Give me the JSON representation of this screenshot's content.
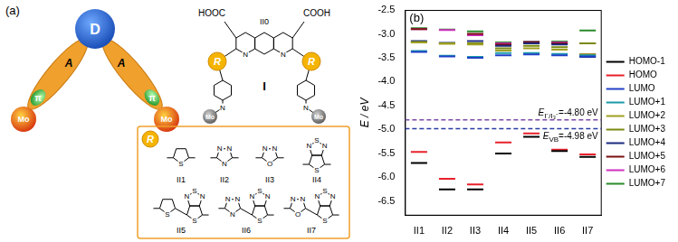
{
  "panel_a": {
    "label": "(a)",
    "scheme": {
      "donor": "D",
      "acceptor": "A",
      "bridge": "π",
      "anchor": "Mo"
    },
    "molecule": {
      "name": "I",
      "core": "II0",
      "left_group": "HOOC",
      "right_group": "COOH",
      "core_atoms": [
        "N",
        "N"
      ],
      "substituent": "R",
      "amine": "N",
      "anchor": "Mo"
    },
    "substituents": {
      "title": "R",
      "items": [
        {
          "name": "II1",
          "rings": [
            [
              "S"
            ]
          ]
        },
        {
          "name": "II2",
          "rings": [
            [
              "N",
              "N",
              "N"
            ]
          ]
        },
        {
          "name": "II3",
          "rings": [
            [
              "O",
              "N",
              "N"
            ]
          ]
        },
        {
          "name": "II4",
          "rings": [
            [
              "S",
              "N",
              "N",
              "S"
            ]
          ]
        },
        {
          "name": "II5",
          "rings": [
            [
              "S"
            ],
            [
              "S",
              "N",
              "N",
              "S"
            ]
          ]
        },
        {
          "name": "II6",
          "rings": [
            [
              "N",
              "N",
              "N"
            ],
            [
              "S",
              "N",
              "N",
              "S"
            ]
          ]
        },
        {
          "name": "II7",
          "rings": [
            [
              "O",
              "N",
              "N"
            ],
            [
              "S",
              "N",
              "N",
              "S"
            ]
          ]
        }
      ]
    }
  },
  "chart_data": {
    "type": "line",
    "label": "(b)",
    "y_label": "E / eV",
    "categories": [
      "II1",
      "II2",
      "II3",
      "II4",
      "II5",
      "II6",
      "II7"
    ],
    "ylim": [
      -6.8,
      -2.5
    ],
    "yticks": [
      -6.5,
      {
        "value": -6,
        "label": "-6.0"
      },
      -5.5,
      {
        "value": -5,
        "label": "-5.0"
      },
      -4.5,
      {
        "value": -4,
        "label": "-4.0"
      },
      -3.5,
      {
        "value": -3,
        "label": "-3.0"
      },
      -2.5
    ],
    "grid": false,
    "legend": "right",
    "marker": "line",
    "line_style": "none",
    "series": [
      {
        "name": "HOMO-1",
        "color": "#000000",
        "values": [
          -5.7,
          -6.25,
          -6.25,
          -5.5,
          -5.15,
          -5.45,
          -5.57
        ]
      },
      {
        "name": "HOMO",
        "color": "#e8202a",
        "values": [
          -5.47,
          -6.03,
          -6.15,
          -5.27,
          -5.08,
          -5.42,
          -5.52
        ]
      },
      {
        "name": "LUMO",
        "color": "#2040c8",
        "values": [
          -3.38,
          -3.47,
          -3.5,
          -3.45,
          -3.43,
          -3.45,
          -3.47
        ]
      },
      {
        "name": "LUMO+1",
        "color": "#1a9aa8",
        "values": [
          -3.36,
          -3.46,
          -3.48,
          -3.4,
          -3.4,
          -3.42,
          -3.45
        ]
      },
      {
        "name": "LUMO+2",
        "color": "#a0a020",
        "values": [
          -3.18,
          -3.21,
          -3.22,
          -3.35,
          -3.3,
          -3.33,
          -3.43
        ]
      },
      {
        "name": "LUMO+3",
        "color": "#7a8a10",
        "values": [
          -3.17,
          -3.2,
          -3.2,
          -3.3,
          -3.25,
          -3.28,
          -3.2
        ]
      },
      {
        "name": "LUMO+4",
        "color": "#1a2a80",
        "values": [
          -3.15,
          -3.19,
          -3.15,
          -3.25,
          -3.2,
          -3.22,
          -3.48
        ]
      },
      {
        "name": "LUMO+5",
        "color": "#7a1010",
        "values": [
          -2.9,
          -3.2,
          -3.0,
          -3.22,
          -3.18,
          -3.2,
          -3.43
        ]
      },
      {
        "name": "LUMO+6",
        "color": "#d030c0",
        "values": [
          -2.9,
          -2.92,
          -3.03,
          -3.2,
          -3.17,
          -3.18,
          -3.2
        ]
      },
      {
        "name": "LUMO+7",
        "color": "#2a8a2a",
        "values": [
          -2.88,
          -2.91,
          -2.95,
          -3.18,
          -3.16,
          -3.16,
          -2.93
        ]
      }
    ],
    "reference_lines": [
      {
        "value": -4.8,
        "symbol": "E",
        "subscript": "I⁻/I₃⁻",
        "text": "=-4.80 eV",
        "color": "#7a4aa8",
        "line_style": "dashed"
      },
      {
        "value": -4.98,
        "symbol": "E",
        "subscript": "VB",
        "text": "=-4.98 eV",
        "color": "#2a3aa0",
        "line_style": "dashed"
      }
    ]
  }
}
